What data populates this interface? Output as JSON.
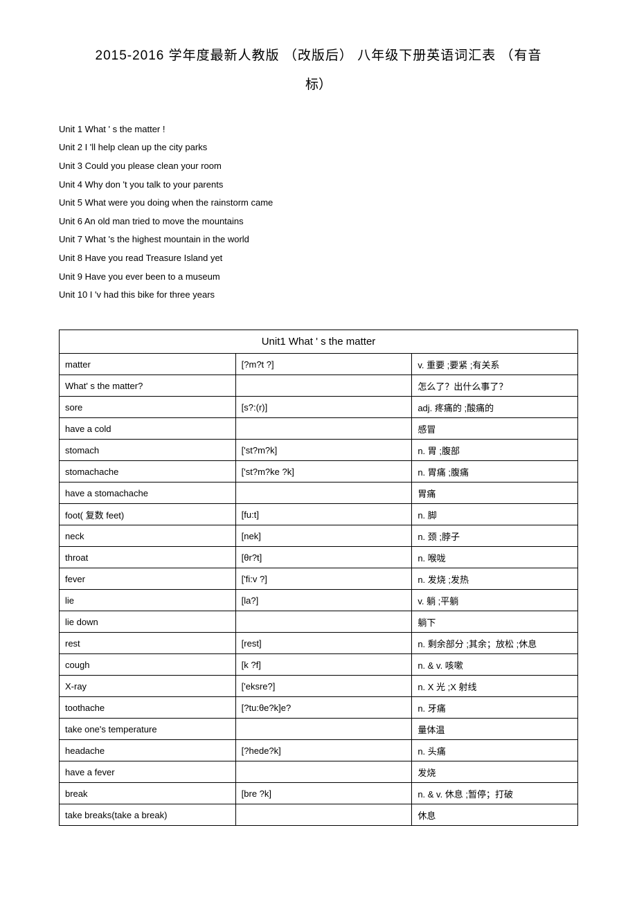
{
  "title_line1": "2015-2016  学年度最新人教版    （改版后）  八年级下册英语词汇表    （有音",
  "title_line2": "标）",
  "units": [
    "Unit 1 What ' s the matter !",
    "Unit 2 I 'll help clean up the city parks",
    "Unit 3 Could you please clean your room",
    "Unit 4 Why don 't you talk to your parents",
    "Unit 5 What were you doing when the rainstorm came",
    "Unit 6 An old man tried to move the mountains",
    "Unit 7 What 's the highest mountain in the world",
    "Unit 8 Have you read Treasure Island yet",
    "Unit 9 Have you ever been to a museum",
    "Unit 10 I 'v had this bike for three years"
  ],
  "table": {
    "header": "Unit1 What ' s the matter",
    "rows": [
      {
        "w": "matter",
        "p": "[?m?t ?]",
        "d": "v.  重要 ;要紧 ;有关系"
      },
      {
        "w": "What' s the matter?",
        "p": "",
        "d": "怎么了？出什么事了？"
      },
      {
        "w": "sore",
        "p": "[s?:(r)]",
        "d": "adj.  疼痛的 ;酸痛的"
      },
      {
        "w": "have a cold",
        "p": "",
        "d": "感冒"
      },
      {
        "w": "stomach",
        "p": "['st?m?k]",
        "d": "n.  胃 ;腹部"
      },
      {
        "w": "stomachache",
        "p": "['st?m?ke ?k]",
        "d": "n.  胃痛 ;腹痛"
      },
      {
        "w": "have a stomachache",
        "p": "",
        "d": "胃痛"
      },
      {
        "w": "foot( 复数  feet)",
        "p": "[fu:t]",
        "d": "n.  脚"
      },
      {
        "w": "neck",
        "p": "[nek]",
        "d": "n.  颈 ;脖子"
      },
      {
        "w": "throat",
        "p": "[θr?t]",
        "d": "n.  喉咙"
      },
      {
        "w": "fever",
        "p": "['fi:v ?]",
        "d": "n.  发烧 ;发热"
      },
      {
        "w": "lie",
        "p": "[la?]",
        "d": "v.  躺 ;平躺"
      },
      {
        "w": "lie down",
        "p": "",
        "d": "躺下"
      },
      {
        "w": "rest",
        "p": "[rest]",
        "d": "n.  剩余部分 ;其余；放松 ;休息"
      },
      {
        "w": "cough",
        "p": "[k ?f]",
        "d": "n. & v.  咳嗽"
      },
      {
        "w": "X-ray",
        "p": "['eksre?]",
        "d": "n. X 光 ;X 射线"
      },
      {
        "w": "toothache",
        "p": "[?tu:θe?k]e?",
        "d": "n.  牙痛"
      },
      {
        "w": "take one's temperature",
        "p": "",
        "d": "量体温"
      },
      {
        "w": "headache",
        "p": "[?hede?k]",
        "d": "n.  头痛"
      },
      {
        "w": "have a fever",
        "p": "",
        "d": "发烧"
      },
      {
        "w": "break",
        "p": "[bre ?k]",
        "d": "n. & v.  休息 ;暂停；打破"
      },
      {
        "w": "take breaks(take a break)",
        "p": "",
        "d": "休息"
      }
    ]
  }
}
